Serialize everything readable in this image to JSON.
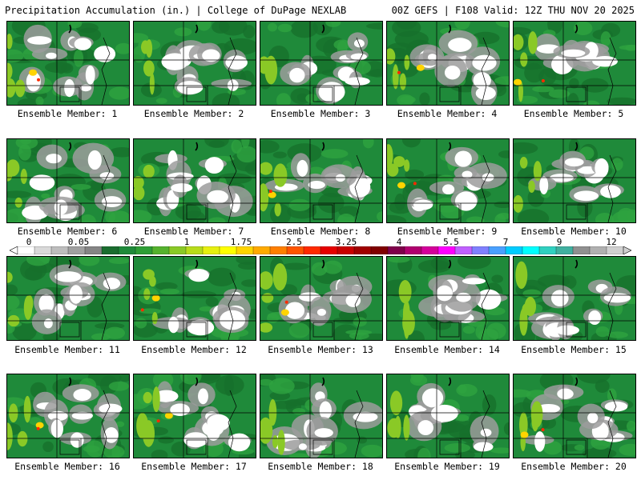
{
  "header": {
    "left": "Precipitation Accumulation (in.) | College of DuPage NEXLAB",
    "right": "00Z GEFS | F108 Valid: 12Z THU NOV 20 2025"
  },
  "panels": [
    {
      "label": "Ensemble Member: 1"
    },
    {
      "label": "Ensemble Member: 2"
    },
    {
      "label": "Ensemble Member: 3"
    },
    {
      "label": "Ensemble Member: 4"
    },
    {
      "label": "Ensemble Member: 5"
    },
    {
      "label": "Ensemble Member: 6"
    },
    {
      "label": "Ensemble Member: 7"
    },
    {
      "label": "Ensemble Member: 8"
    },
    {
      "label": "Ensemble Member: 9"
    },
    {
      "label": "Ensemble Member: 10"
    },
    {
      "label": "Ensemble Member: 11"
    },
    {
      "label": "Ensemble Member: 12"
    },
    {
      "label": "Ensemble Member: 13"
    },
    {
      "label": "Ensemble Member: 14"
    },
    {
      "label": "Ensemble Member: 15"
    },
    {
      "label": "Ensemble Member: 16"
    },
    {
      "label": "Ensemble Member: 17"
    },
    {
      "label": "Ensemble Member: 18"
    },
    {
      "label": "Ensemble Member: 19"
    },
    {
      "label": "Ensemble Member: 20"
    }
  ],
  "colorbar": {
    "labels": [
      "0",
      "0.05",
      "0.25",
      "1",
      "1.75",
      "2.5",
      "3.25",
      "4",
      "5.5",
      "7",
      "9",
      "12"
    ],
    "colors": [
      "#ffffff",
      "#d9d9d9",
      "#bdbdbd",
      "#a0a0a0",
      "#858585",
      "#1a6d2f",
      "#1f8a3a",
      "#2e9e36",
      "#55b22e",
      "#8ac926",
      "#b8dc1a",
      "#e6ef10",
      "#ffff00",
      "#ffd400",
      "#ffaa00",
      "#ff7f00",
      "#ff5500",
      "#ff2a00",
      "#e60000",
      "#c80000",
      "#a00000",
      "#800000",
      "#80004b",
      "#b0006f",
      "#d4009a",
      "#ff00ff",
      "#c060ff",
      "#8080ff",
      "#4aa0ff",
      "#00ccff",
      "#00ffff",
      "#30d0c0",
      "#40b0a0",
      "#909090",
      "#b0b0b0",
      "#d0d0d0"
    ]
  }
}
